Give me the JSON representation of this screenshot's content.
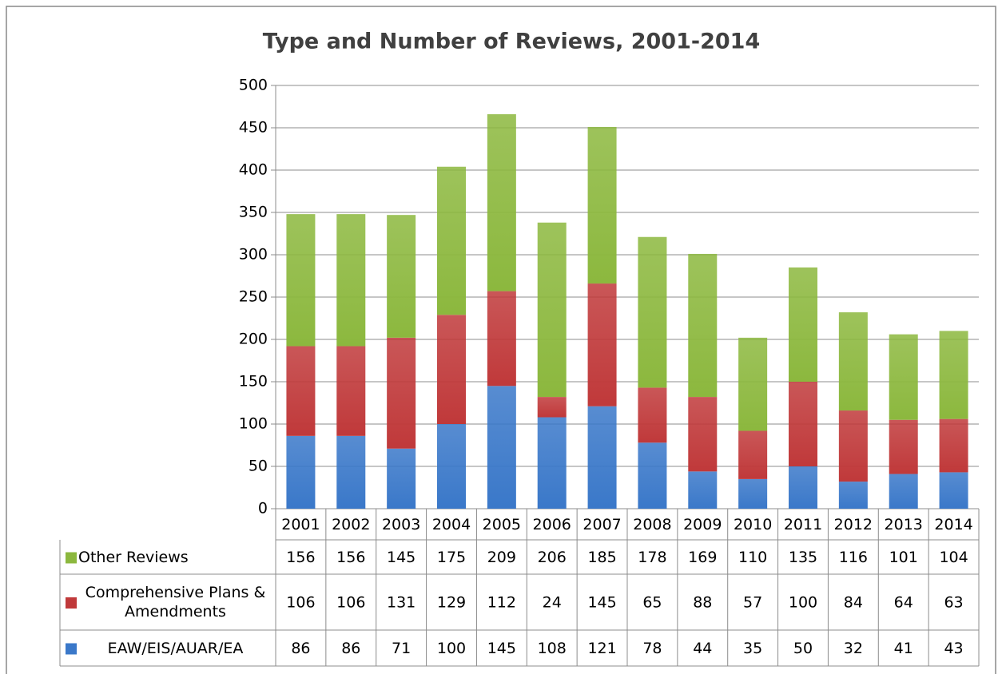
{
  "chart_data": {
    "type": "stacked_bar",
    "title": "Type and Number of Reviews, 2001-2014",
    "categories": [
      "2001",
      "2002",
      "2003",
      "2004",
      "2005",
      "2006",
      "2007",
      "2008",
      "2009",
      "2010",
      "2011",
      "2012",
      "2013",
      "2014"
    ],
    "series": [
      {
        "name": "EAW/EIS/AUAR/EA",
        "color": "#3a78c9",
        "values": [
          86,
          86,
          71,
          100,
          145,
          108,
          121,
          78,
          44,
          35,
          50,
          32,
          41,
          43
        ]
      },
      {
        "name": "Comprehensive Plans & Amendments",
        "color": "#c0393a",
        "values": [
          106,
          106,
          131,
          129,
          112,
          24,
          145,
          65,
          88,
          57,
          100,
          84,
          64,
          63
        ]
      },
      {
        "name": "Other Reviews",
        "color": "#8cb83e",
        "values": [
          156,
          156,
          145,
          175,
          209,
          206,
          185,
          178,
          169,
          110,
          135,
          116,
          101,
          104
        ]
      }
    ],
    "ylim": [
      0,
      500
    ],
    "yticks": [
      0,
      50,
      100,
      150,
      200,
      250,
      300,
      350,
      400,
      450,
      500
    ],
    "grid": true
  }
}
